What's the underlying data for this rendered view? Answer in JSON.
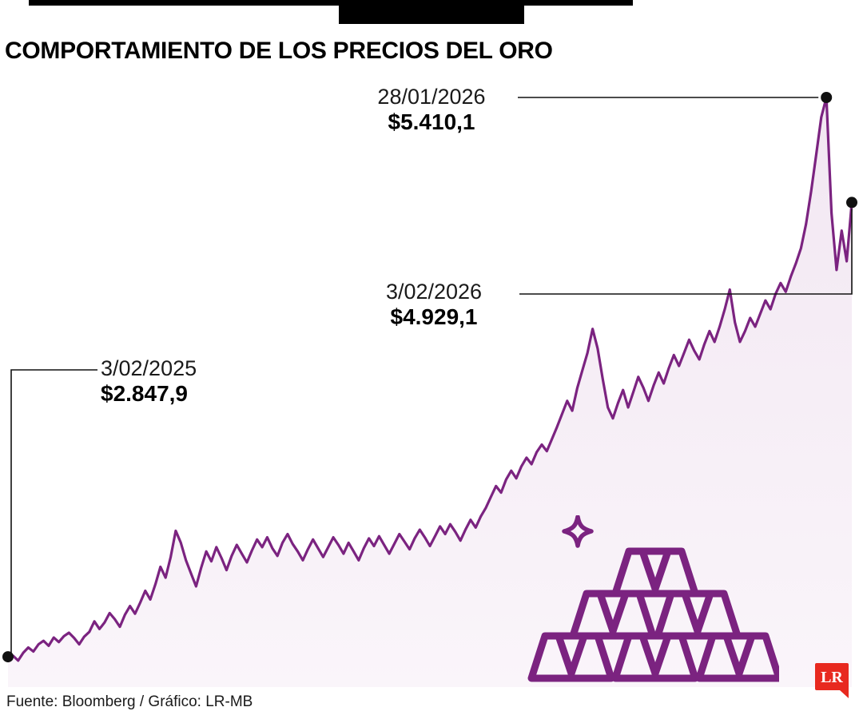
{
  "header": {
    "title": "COMPORTAMIENTO DE LOS PRECIOS DEL ORO"
  },
  "annotations": {
    "start": {
      "date": "3/02/2025",
      "price": "$2.847,9"
    },
    "peak": {
      "date": "28/01/2026",
      "price": "$5.410,1"
    },
    "end": {
      "date": "3/02/2026",
      "price": "$4.929,1"
    }
  },
  "footer": {
    "source": "Fuente: Bloomberg / Gráfico: LR-MB",
    "logo_text": "LR"
  },
  "colors": {
    "line": "#7b2380",
    "area_top": "#f2e7f2",
    "area_bottom": "#faf5fa",
    "ink": "#111111",
    "accent_red": "#e8291f",
    "logo_text": "#ffffff"
  },
  "chart_data": {
    "type": "line",
    "title": "Comportamiento de los precios del oro",
    "series_name": "Precio del oro",
    "x_range": [
      "3/02/2025",
      "3/02/2026"
    ],
    "ylim": [
      2709,
      5509
    ],
    "grid": false,
    "legend": "none",
    "key_points": [
      {
        "date": "3/02/2025",
        "value": 2847.9
      },
      {
        "date": "28/01/2026",
        "value": 5410.1
      },
      {
        "date": "3/02/2026",
        "value": 4929.1
      }
    ],
    "values": [
      2847.9,
      2852,
      2830,
      2866,
      2890,
      2872,
      2905,
      2921,
      2898,
      2936,
      2915,
      2942,
      2958,
      2934,
      2905,
      2940,
      2962,
      3010,
      2975,
      3005,
      3048,
      3020,
      2985,
      3040,
      3080,
      3045,
      3095,
      3150,
      3110,
      3180,
      3260,
      3210,
      3305,
      3425,
      3370,
      3290,
      3230,
      3170,
      3255,
      3330,
      3285,
      3350,
      3300,
      3245,
      3310,
      3360,
      3320,
      3280,
      3335,
      3385,
      3350,
      3395,
      3345,
      3310,
      3370,
      3410,
      3365,
      3330,
      3290,
      3340,
      3385,
      3345,
      3305,
      3350,
      3395,
      3360,
      3320,
      3370,
      3330,
      3290,
      3345,
      3390,
      3355,
      3400,
      3360,
      3320,
      3365,
      3410,
      3375,
      3340,
      3390,
      3430,
      3395,
      3355,
      3400,
      3445,
      3410,
      3455,
      3420,
      3380,
      3430,
      3475,
      3440,
      3490,
      3530,
      3580,
      3630,
      3600,
      3660,
      3700,
      3665,
      3720,
      3760,
      3730,
      3785,
      3820,
      3790,
      3845,
      3900,
      3960,
      4020,
      3975,
      4080,
      4160,
      4240,
      4350,
      4260,
      4120,
      3990,
      3940,
      4010,
      4070,
      3990,
      4060,
      4130,
      4080,
      4020,
      4090,
      4150,
      4100,
      4170,
      4230,
      4180,
      4240,
      4300,
      4250,
      4210,
      4280,
      4340,
      4290,
      4360,
      4440,
      4530,
      4380,
      4290,
      4340,
      4400,
      4360,
      4420,
      4480,
      4440,
      4510,
      4560,
      4520,
      4590,
      4650,
      4720,
      4830,
      4980,
      5150,
      5320,
      5410.1,
      4880,
      4620,
      4800,
      4660,
      4929.1
    ]
  }
}
